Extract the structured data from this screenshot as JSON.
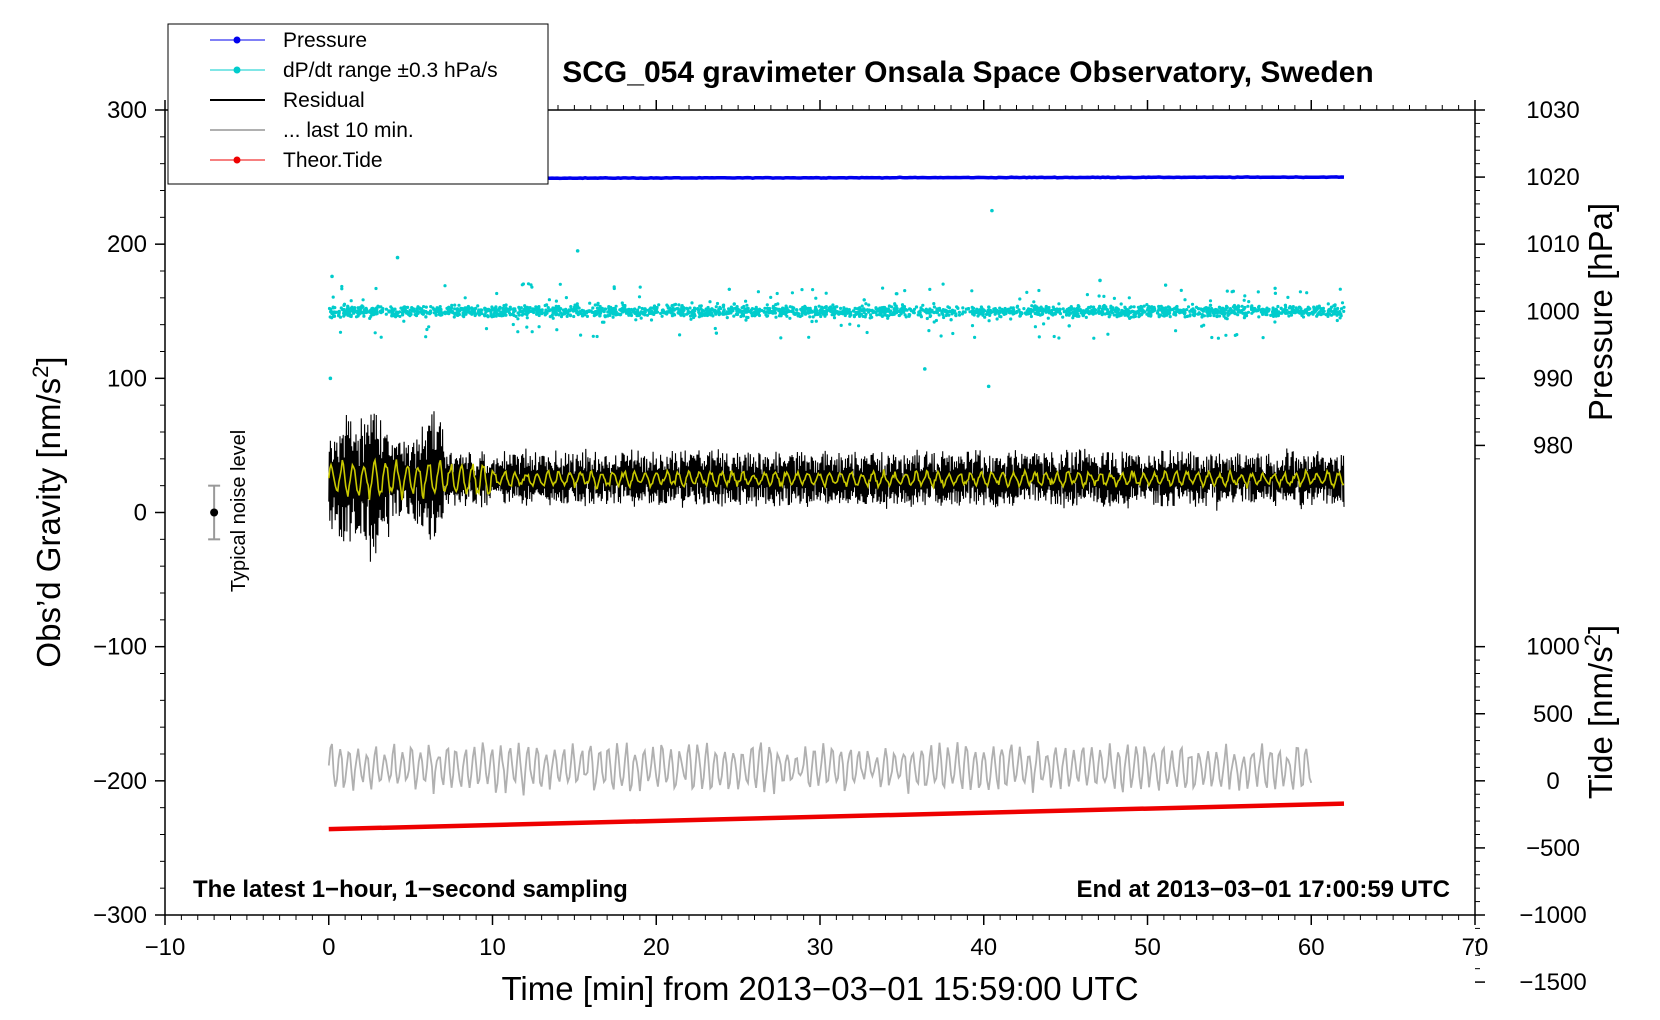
{
  "chart_data": {
    "type": "line",
    "title": "SCG_054 gravimeter Onsala Space Observatory, Sweden",
    "xlabel": "Time [min] from 2013−03−01 15:59:00 UTC",
    "ylabel": "Obs’d Gravity [nm/s2]",
    "ylabel_right_top": "Pressure [hPa]",
    "ylabel_right_bottom": "Tide [nm/s2]",
    "xlim": [
      -10,
      70
    ],
    "ylim": [
      -300,
      300
    ],
    "x_ticks": [
      "−10",
      "0",
      "10",
      "20",
      "30",
      "40",
      "50",
      "60",
      "70"
    ],
    "y_ticks": [
      "300",
      "200",
      "100",
      "0",
      "−100",
      "−200",
      "−300"
    ],
    "pressure_ticks": [
      "1030",
      "1020",
      "1010",
      "1000",
      "990",
      "980"
    ],
    "tide_ticks": [
      "1000",
      "500",
      "0",
      "−500",
      "−1000",
      "−1500"
    ],
    "legend": [
      {
        "name": "Pressure",
        "color": "#0000ee",
        "style": "line-dot"
      },
      {
        "name": "dP/dt range ±0.3 hPa/s",
        "color": "#00cccc",
        "style": "line-dot"
      },
      {
        "name": "Residual",
        "color": "#000000",
        "style": "line"
      },
      {
        "name": "... last 10 min.",
        "color": "#b0b0b0",
        "style": "line"
      },
      {
        "name": "Theor.Tide",
        "color": "#ee0000",
        "style": "line-dot"
      }
    ],
    "annotations": {
      "bottom_left": "The latest 1−hour, 1−second sampling",
      "bottom_right": "End at 2013−03−01 17:00:59 UTC",
      "noise_label": "Typical noise level"
    },
    "series": [
      {
        "name": "Pressure",
        "axis": "pressure_hPa",
        "x_range_min": [
          0,
          62
        ],
        "y_start": 1019.8,
        "y_end": 1020.0
      },
      {
        "name": "dP/dt range ±0.3 hPa/s",
        "axis": "gravity_plot_offset",
        "x_range_min": [
          0,
          62
        ],
        "center": 150,
        "spread": 8
      },
      {
        "name": "Residual",
        "axis": "gravity_nm_s2",
        "x_range_min": [
          0,
          62
        ],
        "center": 25,
        "amplitude_early": 50,
        "amplitude_late": 20
      },
      {
        "name": "Residual (filtered)",
        "color": "#c8c800",
        "axis": "gravity_nm_s2",
        "x_range_min": [
          0,
          62
        ],
        "center": 25,
        "amplitude": 8
      },
      {
        "name": "... last 10 min.",
        "axis": "gravity_plot_offset",
        "x_range_min": [
          0,
          60
        ],
        "center": -190,
        "amplitude": 20
      },
      {
        "name": "Theor.Tide",
        "axis": "tide_nm_s2",
        "x": [
          0,
          62
        ],
        "values": [
          -360,
          -170
        ]
      }
    ],
    "noise_level": {
      "x": -7,
      "center": 0,
      "range": [
        -20,
        20
      ]
    },
    "colors": {
      "residual_filtered": "#c8c800"
    }
  }
}
